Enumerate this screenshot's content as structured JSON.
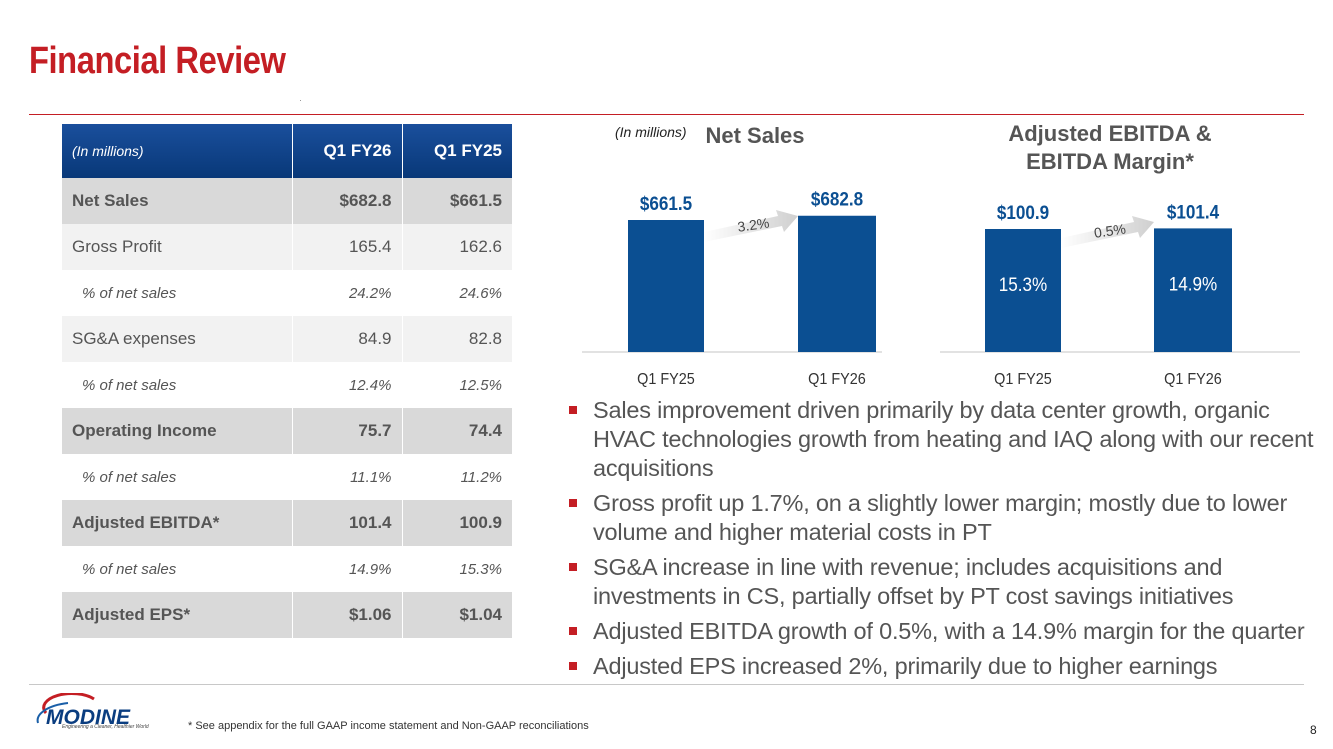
{
  "header": {
    "title": "Financial Review"
  },
  "table": {
    "unit_label": "(In millions)",
    "columns": [
      "Q1 FY26",
      "Q1 FY25"
    ],
    "rows": [
      {
        "label": "Net Sales",
        "q1fy26": "$682.8",
        "q1fy25": "$661.5",
        "style": "bold"
      },
      {
        "label": "Gross Profit",
        "q1fy26": "165.4",
        "q1fy25": "162.6",
        "style": "plain"
      },
      {
        "label": "% of net sales",
        "q1fy26": "24.2%",
        "q1fy25": "24.6%",
        "style": "pct"
      },
      {
        "label": "SG&A expenses",
        "q1fy26": "84.9",
        "q1fy25": "82.8",
        "style": "plain"
      },
      {
        "label": "% of net sales",
        "q1fy26": "12.4%",
        "q1fy25": "12.5%",
        "style": "pct"
      },
      {
        "label": "Operating Income",
        "q1fy26": "75.7",
        "q1fy25": "74.4",
        "style": "bold"
      },
      {
        "label": "% of net sales",
        "q1fy26": "11.1%",
        "q1fy25": "11.2%",
        "style": "pct"
      },
      {
        "label": "Adjusted EBITDA*",
        "q1fy26": "101.4",
        "q1fy25": "100.9",
        "style": "bold"
      },
      {
        "label": "% of net sales",
        "q1fy26": "14.9%",
        "q1fy25": "15.3%",
        "style": "pct"
      },
      {
        "label": "Adjusted EPS*",
        "q1fy26": "$1.06",
        "q1fy25": "$1.04",
        "style": "bold"
      }
    ]
  },
  "charts": {
    "unit_note": "(In millions)",
    "net_sales_title": "Net Sales",
    "ebitda_title_line1": "Adjusted EBITDA &",
    "ebitda_title_line2": "EBITDA Margin*"
  },
  "chart_data": [
    {
      "type": "bar",
      "title": "Net Sales",
      "categories": [
        "Q1 FY25",
        "Q1 FY26"
      ],
      "values": [
        661.5,
        682.8
      ],
      "value_labels": [
        "$661.5",
        "$682.8"
      ],
      "growth_label": "3.2%",
      "ylim": [
        0,
        800
      ]
    },
    {
      "type": "bar",
      "title": "Adjusted EBITDA & EBITDA Margin*",
      "categories": [
        "Q1 FY25",
        "Q1 FY26"
      ],
      "values": [
        100.9,
        101.4
      ],
      "value_labels": [
        "$100.9",
        "$101.4"
      ],
      "margin_labels": [
        "15.3%",
        "14.9%"
      ],
      "growth_label": "0.5%",
      "ylim": [
        0,
        120
      ]
    }
  ],
  "bullets": [
    "Sales improvement driven primarily by data center growth, organic HVAC technologies growth from heating and IAQ along with our recent acquisitions",
    "Gross profit up 1.7%, on a slightly lower margin; mostly due to lower volume and higher material costs in PT",
    "SG&A increase in line with revenue; includes acquisitions and investments in CS, partially offset by PT cost savings initiatives",
    "Adjusted EBITDA growth of 0.5%, with a 14.9% margin for the quarter",
    "Adjusted EPS increased 2%, primarily due to higher earnings"
  ],
  "footer": {
    "logo_text": "MODINE",
    "logo_tagline": "Engineering a Cleaner, Healthier World",
    "footnote": "* See appendix for the full GAAP income statement and Non-GAAP reconciliations",
    "page_number": "8"
  },
  "colors": {
    "accent_red": "#c41e24",
    "bar_blue": "#0b4f92",
    "header_blue": "#0a3d80"
  }
}
